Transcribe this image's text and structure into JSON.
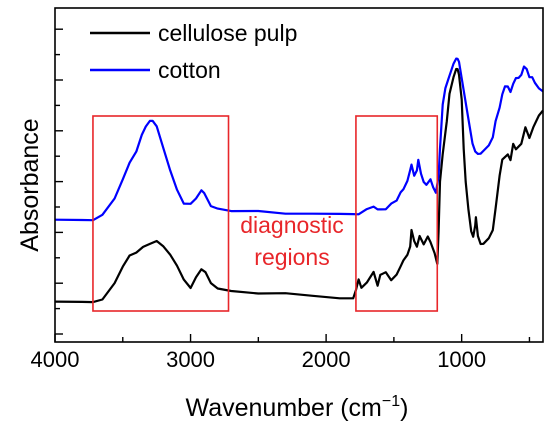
{
  "chart_data": {
    "type": "line",
    "xlabel": "Wavenumber (cm⁻¹)",
    "xlabel_main": "Wavenumber (cm",
    "xlabel_sup": "−1",
    "xlabel_end": ")",
    "ylabel": "Absorbance",
    "xlim": [
      4000,
      400
    ],
    "x_reversed": true,
    "ylim": [
      0,
      1
    ],
    "x_ticks": [
      4000,
      3000,
      2000,
      1000
    ],
    "x_tick_labels": [
      "4000",
      "3000",
      "2000",
      "1000"
    ],
    "y_tick_labels_shown": false,
    "legend_position": "top-left",
    "series": [
      {
        "name": "cellulose pulp",
        "color": "#000000",
        "points": [
          [
            4000,
            0.06
          ],
          [
            3800,
            0.06
          ],
          [
            3720,
            0.06
          ],
          [
            3650,
            0.07
          ],
          [
            3560,
            0.13
          ],
          [
            3500,
            0.19
          ],
          [
            3450,
            0.23
          ],
          [
            3400,
            0.24
          ],
          [
            3350,
            0.26
          ],
          [
            3300,
            0.27
          ],
          [
            3250,
            0.28
          ],
          [
            3200,
            0.26
          ],
          [
            3150,
            0.23
          ],
          [
            3100,
            0.19
          ],
          [
            3050,
            0.14
          ],
          [
            3000,
            0.11
          ],
          [
            2960,
            0.15
          ],
          [
            2920,
            0.18
          ],
          [
            2890,
            0.17
          ],
          [
            2850,
            0.13
          ],
          [
            2800,
            0.11
          ],
          [
            2700,
            0.1
          ],
          [
            2500,
            0.09
          ],
          [
            2300,
            0.09
          ],
          [
            2100,
            0.08
          ],
          [
            1900,
            0.07
          ],
          [
            1800,
            0.07
          ],
          [
            1780,
            0.1
          ],
          [
            1760,
            0.14
          ],
          [
            1740,
            0.11
          ],
          [
            1700,
            0.13
          ],
          [
            1650,
            0.17
          ],
          [
            1620,
            0.12
          ],
          [
            1600,
            0.16
          ],
          [
            1560,
            0.17
          ],
          [
            1520,
            0.14
          ],
          [
            1480,
            0.16
          ],
          [
            1450,
            0.19
          ],
          [
            1430,
            0.21
          ],
          [
            1400,
            0.23
          ],
          [
            1380,
            0.26
          ],
          [
            1370,
            0.32
          ],
          [
            1350,
            0.28
          ],
          [
            1330,
            0.26
          ],
          [
            1310,
            0.3
          ],
          [
            1280,
            0.27
          ],
          [
            1250,
            0.3
          ],
          [
            1230,
            0.28
          ],
          [
            1200,
            0.24
          ],
          [
            1180,
            0.2
          ],
          [
            1170,
            0.32
          ],
          [
            1160,
            0.5
          ],
          [
            1140,
            0.6
          ],
          [
            1110,
            0.72
          ],
          [
            1090,
            0.82
          ],
          [
            1060,
            0.88
          ],
          [
            1040,
            0.91
          ],
          [
            1030,
            0.91
          ],
          [
            1020,
            0.89
          ],
          [
            1000,
            0.8
          ],
          [
            985,
            0.62
          ],
          [
            970,
            0.5
          ],
          [
            950,
            0.4
          ],
          [
            930,
            0.32
          ],
          [
            915,
            0.3
          ],
          [
            900,
            0.34
          ],
          [
            895,
            0.37
          ],
          [
            880,
            0.3
          ],
          [
            860,
            0.27
          ],
          [
            840,
            0.27
          ],
          [
            800,
            0.29
          ],
          [
            770,
            0.32
          ],
          [
            750,
            0.4
          ],
          [
            720,
            0.52
          ],
          [
            700,
            0.58
          ],
          [
            660,
            0.6
          ],
          [
            640,
            0.58
          ],
          [
            620,
            0.64
          ],
          [
            600,
            0.62
          ],
          [
            560,
            0.64
          ],
          [
            530,
            0.7
          ],
          [
            500,
            0.66
          ],
          [
            470,
            0.7
          ],
          [
            450,
            0.72
          ],
          [
            430,
            0.74
          ],
          [
            400,
            0.76
          ]
        ]
      },
      {
        "name": "cotton",
        "color": "#0000ff",
        "points": [
          [
            4000,
            0.36
          ],
          [
            3800,
            0.36
          ],
          [
            3720,
            0.36
          ],
          [
            3650,
            0.38
          ],
          [
            3560,
            0.44
          ],
          [
            3500,
            0.51
          ],
          [
            3450,
            0.57
          ],
          [
            3400,
            0.61
          ],
          [
            3360,
            0.67
          ],
          [
            3330,
            0.7
          ],
          [
            3300,
            0.72
          ],
          [
            3280,
            0.72
          ],
          [
            3250,
            0.7
          ],
          [
            3200,
            0.62
          ],
          [
            3150,
            0.54
          ],
          [
            3100,
            0.47
          ],
          [
            3050,
            0.42
          ],
          [
            3000,
            0.42
          ],
          [
            2960,
            0.44
          ],
          [
            2920,
            0.47
          ],
          [
            2900,
            0.46
          ],
          [
            2870,
            0.43
          ],
          [
            2850,
            0.41
          ],
          [
            2800,
            0.4
          ],
          [
            2700,
            0.39
          ],
          [
            2500,
            0.39
          ],
          [
            2300,
            0.38
          ],
          [
            2100,
            0.38
          ],
          [
            1900,
            0.38
          ],
          [
            1800,
            0.38
          ],
          [
            1760,
            0.38
          ],
          [
            1700,
            0.4
          ],
          [
            1650,
            0.41
          ],
          [
            1620,
            0.4
          ],
          [
            1600,
            0.4
          ],
          [
            1560,
            0.4
          ],
          [
            1520,
            0.42
          ],
          [
            1480,
            0.43
          ],
          [
            1450,
            0.46
          ],
          [
            1430,
            0.47
          ],
          [
            1400,
            0.5
          ],
          [
            1380,
            0.54
          ],
          [
            1370,
            0.56
          ],
          [
            1350,
            0.52
          ],
          [
            1330,
            0.54
          ],
          [
            1320,
            0.58
          ],
          [
            1300,
            0.53
          ],
          [
            1280,
            0.5
          ],
          [
            1260,
            0.49
          ],
          [
            1230,
            0.51
          ],
          [
            1210,
            0.48
          ],
          [
            1190,
            0.46
          ],
          [
            1170,
            0.52
          ],
          [
            1160,
            0.62
          ],
          [
            1140,
            0.78
          ],
          [
            1120,
            0.84
          ],
          [
            1100,
            0.87
          ],
          [
            1080,
            0.9
          ],
          [
            1060,
            0.93
          ],
          [
            1040,
            0.95
          ],
          [
            1030,
            0.95
          ],
          [
            1020,
            0.94
          ],
          [
            1000,
            0.88
          ],
          [
            980,
            0.82
          ],
          [
            960,
            0.76
          ],
          [
            940,
            0.7
          ],
          [
            920,
            0.64
          ],
          [
            900,
            0.61
          ],
          [
            880,
            0.6
          ],
          [
            860,
            0.6
          ],
          [
            840,
            0.61
          ],
          [
            800,
            0.63
          ],
          [
            770,
            0.66
          ],
          [
            750,
            0.72
          ],
          [
            720,
            0.77
          ],
          [
            700,
            0.82
          ],
          [
            680,
            0.85
          ],
          [
            660,
            0.85
          ],
          [
            640,
            0.83
          ],
          [
            620,
            0.86
          ],
          [
            600,
            0.88
          ],
          [
            580,
            0.88
          ],
          [
            560,
            0.89
          ],
          [
            540,
            0.92
          ],
          [
            520,
            0.91
          ],
          [
            500,
            0.88
          ],
          [
            480,
            0.88
          ],
          [
            460,
            0.86
          ],
          [
            430,
            0.84
          ],
          [
            400,
            0.83
          ]
        ]
      }
    ],
    "annotation": {
      "line1": "diagnostic",
      "line2": "regions",
      "color": "#e8262a",
      "boxes_wavenumber": [
        [
          3720,
          2720
        ],
        [
          1780,
          1180
        ]
      ]
    }
  }
}
